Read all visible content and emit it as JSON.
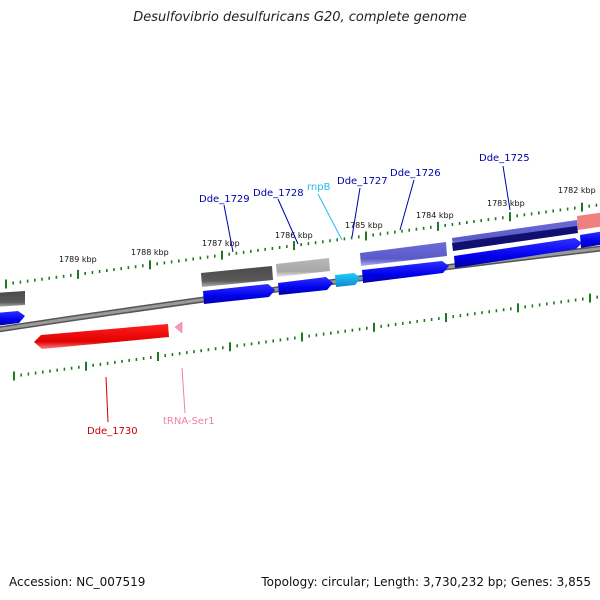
{
  "title": "Desulfovibrio desulfuricans G20, complete genome",
  "accession": "Accession: NC_007519",
  "summary": "Topology: circular; Length: 3,730,232 bp; Genes: 3,855",
  "colors": {
    "backbone": "#7f7f7f",
    "tick": "#1f7a1f",
    "cds": "#0000ee",
    "cds_label": "#0000aa",
    "red": "#e00000",
    "trna": "#f080b0",
    "cyan": "#22bbee"
  },
  "kbp_labels": [
    "1789 kbp",
    "1788 kbp",
    "1787 kbp",
    "1786 kbp",
    "1785 kbp",
    "1784 kbp",
    "1783 kbp",
    "1782 kbp"
  ],
  "gene_labels": {
    "dde1730": "Dde_1730",
    "trna_ser1": "tRNA-Ser1",
    "dde1729": "Dde_1729",
    "dde1728": "Dde_1728",
    "rnpb": "rnpB",
    "dde1727": "Dde_1727",
    "dde1726": "Dde_1726",
    "dde1725": "Dde_1725"
  }
}
